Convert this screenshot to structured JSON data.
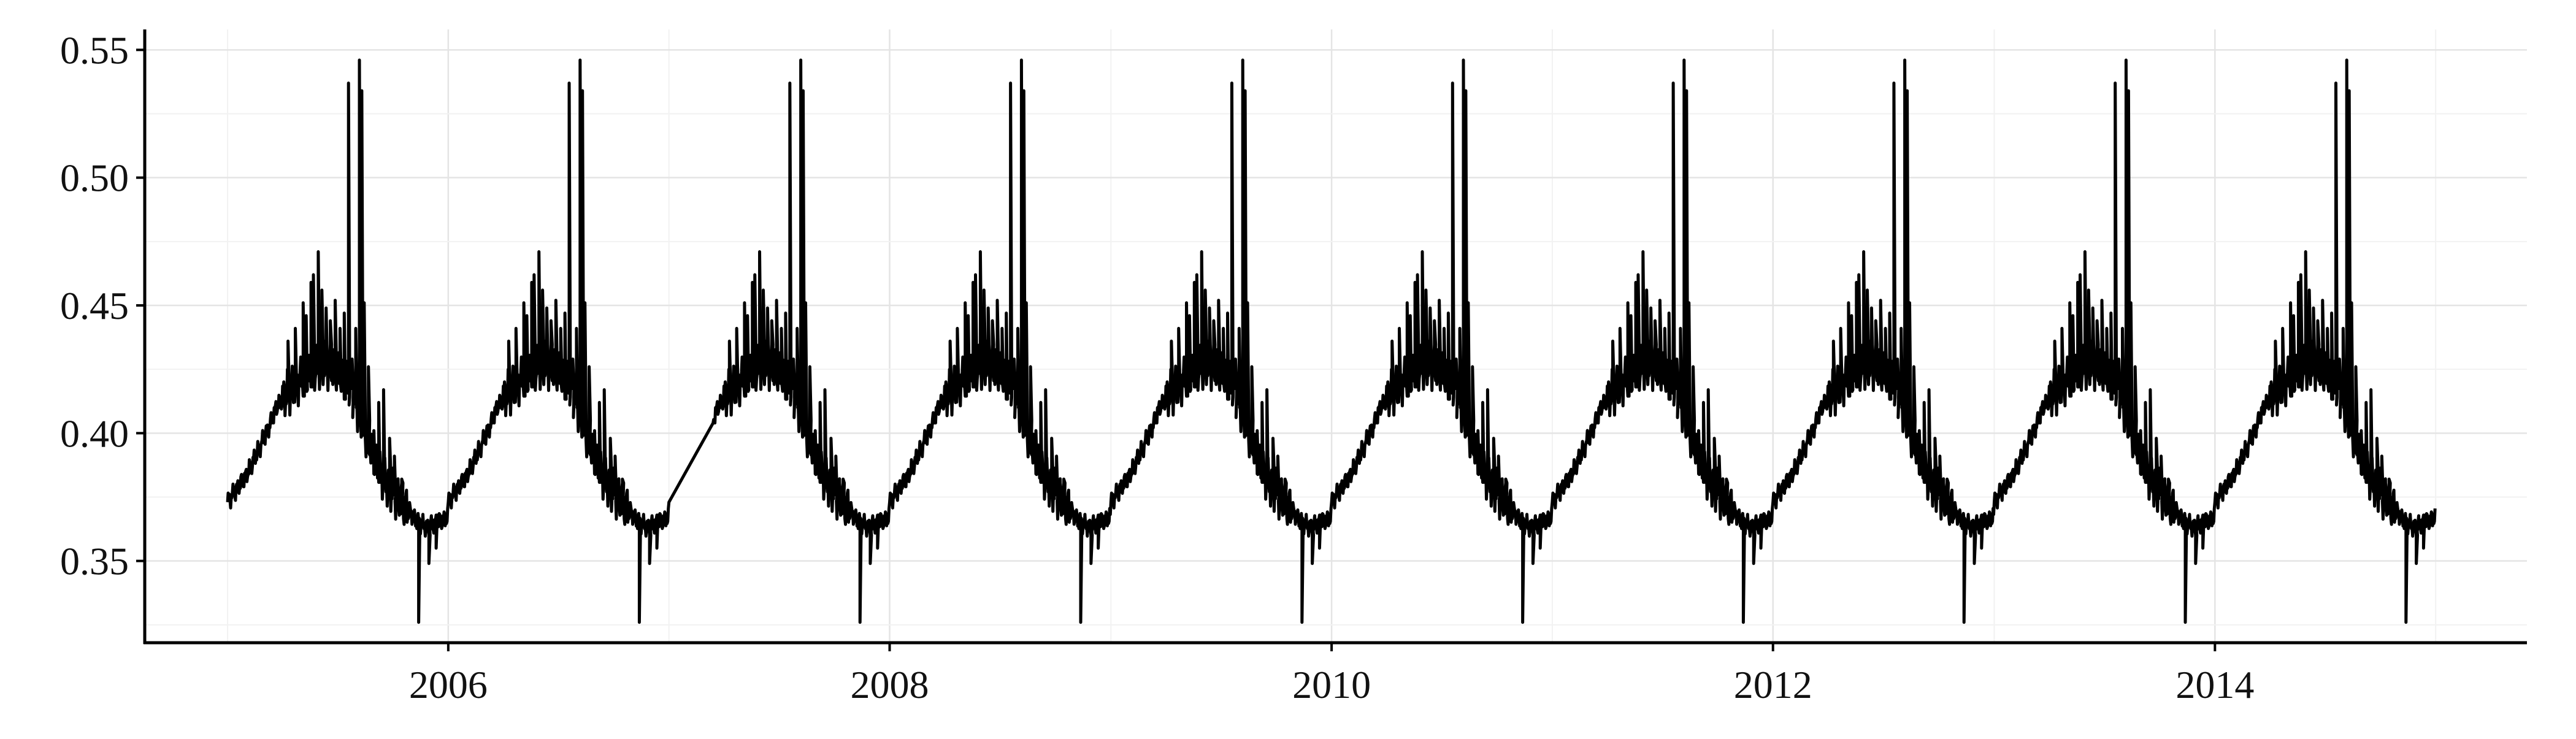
{
  "chart_data": {
    "type": "line",
    "title": "",
    "xlabel": "",
    "ylabel": "",
    "xlim": [
      "2004-08-17",
      "2015-06-01"
    ],
    "ylim": [
      0.318,
      0.558
    ],
    "x_ticks": [
      "2006",
      "2008",
      "2010",
      "2012",
      "2014"
    ],
    "y_ticks": [
      "0.35",
      "0.40",
      "0.45",
      "0.50",
      "0.55"
    ],
    "grid": true,
    "legend": "none",
    "line_color": "#000000",
    "series": [
      {
        "start": "2005-01-01",
        "end": "2014-12-31",
        "pattern": "annual",
        "gaps": [
          "2007-01-01..2007-03-15"
        ],
        "annual_profile": [
          {
            "doy": 0,
            "value": 0.373
          },
          {
            "doy": 15,
            "value": 0.378
          },
          {
            "doy": 30,
            "value": 0.383
          },
          {
            "doy": 50,
            "value": 0.393
          },
          {
            "doy": 70,
            "value": 0.403
          },
          {
            "doy": 80,
            "value": 0.41
          },
          {
            "doy": 100,
            "value": 0.416
          },
          {
            "doy": 130,
            "value": 0.423
          },
          {
            "doy": 160,
            "value": 0.427
          },
          {
            "doy": 180,
            "value": 0.425
          },
          {
            "doy": 200,
            "value": 0.419
          },
          {
            "doy": 215,
            "value": 0.41
          },
          {
            "doy": 230,
            "value": 0.399
          },
          {
            "doy": 245,
            "value": 0.389
          },
          {
            "doy": 260,
            "value": 0.381
          },
          {
            "doy": 280,
            "value": 0.375
          },
          {
            "doy": 300,
            "value": 0.37
          },
          {
            "doy": 310,
            "value": 0.366
          },
          {
            "doy": 330,
            "value": 0.363
          },
          {
            "doy": 345,
            "value": 0.365
          },
          {
            "doy": 365,
            "value": 0.367
          }
        ],
        "annual_spikes": [
          {
            "doy": 100,
            "value": 0.436
          },
          {
            "doy": 112,
            "value": 0.441
          },
          {
            "doy": 125,
            "value": 0.451
          },
          {
            "doy": 130,
            "value": 0.446
          },
          {
            "doy": 138,
            "value": 0.459
          },
          {
            "doy": 142,
            "value": 0.462
          },
          {
            "doy": 150,
            "value": 0.471
          },
          {
            "doy": 156,
            "value": 0.456
          },
          {
            "doy": 163,
            "value": 0.449
          },
          {
            "doy": 170,
            "value": 0.444
          },
          {
            "doy": 178,
            "value": 0.452
          },
          {
            "doy": 186,
            "value": 0.441
          },
          {
            "doy": 193,
            "value": 0.447
          },
          {
            "doy": 200,
            "value": 0.537
          },
          {
            "doy": 206,
            "value": 0.429
          },
          {
            "doy": 212,
            "value": 0.441
          },
          {
            "doy": 218,
            "value": 0.546
          },
          {
            "doy": 222,
            "value": 0.534
          },
          {
            "doy": 226,
            "value": 0.451
          },
          {
            "doy": 233,
            "value": 0.426
          },
          {
            "doy": 242,
            "value": 0.401
          },
          {
            "doy": 250,
            "value": 0.412
          },
          {
            "doy": 258,
            "value": 0.417
          },
          {
            "doy": 268,
            "value": 0.398
          },
          {
            "doy": 276,
            "value": 0.391
          },
          {
            "doy": 288,
            "value": 0.382
          },
          {
            "doy": 316,
            "value": 0.326
          },
          {
            "doy": 333,
            "value": 0.349
          },
          {
            "doy": 345,
            "value": 0.355
          }
        ]
      }
    ]
  }
}
